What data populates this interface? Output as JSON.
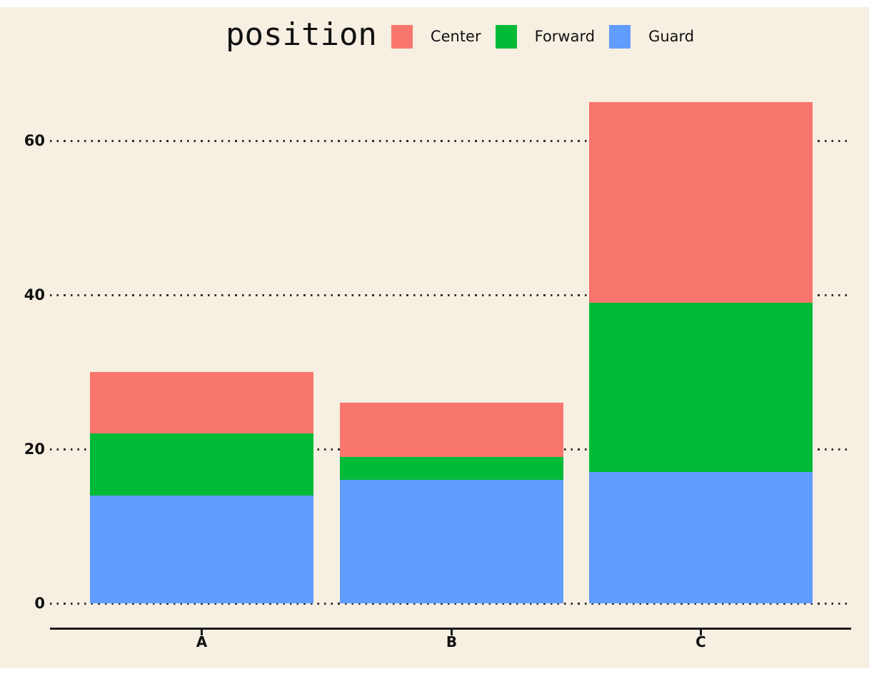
{
  "chart_data": {
    "type": "bar",
    "stacked": true,
    "orientation": "vertical",
    "title": "position",
    "categories": [
      "A",
      "B",
      "C"
    ],
    "series": [
      {
        "name": "Center",
        "color": "#F8766D",
        "values": [
          8,
          7,
          26
        ]
      },
      {
        "name": "Forward",
        "color": "#00BA38",
        "values": [
          8,
          3,
          22
        ]
      },
      {
        "name": "Guard",
        "color": "#619CFF",
        "values": [
          14,
          16,
          17
        ]
      }
    ],
    "stack_totals": [
      30,
      26,
      65
    ],
    "yticks": [
      0,
      20,
      40,
      60
    ],
    "ylim": [
      0,
      67
    ],
    "xlabel": "",
    "ylabel": "",
    "legend_position": "top",
    "grid": "horizontal-dotted"
  },
  "colors": {
    "background": "#F7F0E2",
    "outer_background": "#FFFFFF",
    "axis_line": "#1A1A1A",
    "grid_dots": "#2E2E2E",
    "text": "#111111"
  }
}
